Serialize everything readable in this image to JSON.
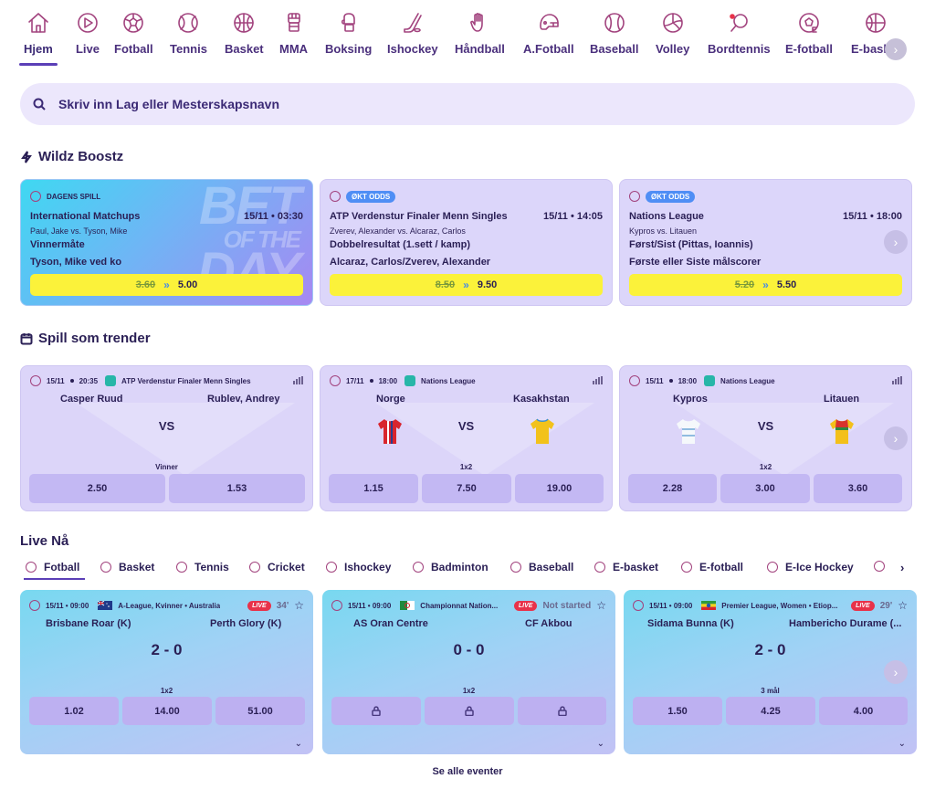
{
  "nav": {
    "items": [
      {
        "label": "Hjem",
        "icon": "home-icon"
      },
      {
        "label": "Live",
        "icon": "play-icon"
      },
      {
        "label": "Fotball",
        "icon": "soccer-ball-icon"
      },
      {
        "label": "Tennis",
        "icon": "tennis-ball-icon"
      },
      {
        "label": "Basket",
        "icon": "basketball-icon"
      },
      {
        "label": "MMA",
        "icon": "mma-glove-icon"
      },
      {
        "label": "Boksing",
        "icon": "boxing-glove-icon"
      },
      {
        "label": "Ishockey",
        "icon": "hockey-stick-icon"
      },
      {
        "label": "Håndball",
        "icon": "handball-icon"
      },
      {
        "label": "A.Fotball",
        "icon": "football-helmet-icon"
      },
      {
        "label": "Baseball",
        "icon": "baseball-icon"
      },
      {
        "label": "Volley",
        "icon": "volleyball-icon"
      },
      {
        "label": "Bordtennis",
        "icon": "table-tennis-icon"
      },
      {
        "label": "E-fotball",
        "icon": "esoccer-icon"
      },
      {
        "label": "E-basket",
        "icon": "ebasket-icon"
      }
    ],
    "next_icon": "›"
  },
  "search": {
    "placeholder": "Skriv inn Lag eller Mesterskapsnavn"
  },
  "boosts": {
    "title": "Wildz Boostz",
    "cards": [
      {
        "tag": "DAGENS SPILL",
        "watermark1": "BET",
        "watermark2": "OF THE",
        "watermark3": "DAY",
        "league": "International Matchups",
        "time": "15/11 • 03:30",
        "teams": "Paul, Jake vs. Tyson, Mike",
        "market": "Vinnermåte",
        "selection": "Tyson, Mike ved ko",
        "old_odds": "3.60",
        "new_odds": "5.00"
      },
      {
        "tag": "ØKT ODDS",
        "league": "ATP Verdenstur Finaler Menn Singles",
        "time": "15/11 • 14:05",
        "teams": "Zverev, Alexander vs. Alcaraz, Carlos",
        "market": "Dobbelresultat (1.sett / kamp)",
        "selection": "Alcaraz, Carlos/Zverev, Alexander",
        "old_odds": "8.50",
        "new_odds": "9.50"
      },
      {
        "tag": "ØKT ODDS",
        "league": "Nations League",
        "time": "15/11 • 18:00",
        "teams": "Kypros vs. Litauen",
        "market": "Først/Sist (Pittas, Ioannis)",
        "selection": "Første eller Siste målscorer",
        "old_odds": "5.20",
        "new_odds": "5.50"
      }
    ]
  },
  "trending": {
    "title": "Spill som trender",
    "vs": "VS",
    "cards": [
      {
        "date": "15/11",
        "time": "20:35",
        "league": "ATP Verdenstur Finaler Menn Singles",
        "home": "Casper Ruud",
        "away": "Rublev, Andrey",
        "market": "Vinner",
        "odds": [
          "2.50",
          "1.53"
        ]
      },
      {
        "date": "17/11",
        "time": "18:00",
        "league": "Nations League",
        "home": "Norge",
        "away": "Kasakhstan",
        "market": "1x2",
        "odds": [
          "1.15",
          "7.50",
          "19.00"
        ]
      },
      {
        "date": "15/11",
        "time": "18:00",
        "league": "Nations League",
        "home": "Kypros",
        "away": "Litauen",
        "market": "1x2",
        "odds": [
          "2.28",
          "3.00",
          "3.60"
        ]
      }
    ]
  },
  "live": {
    "title": "Live Nå",
    "tabs": [
      "Fotball",
      "Basket",
      "Tennis",
      "Cricket",
      "Ishockey",
      "Badminton",
      "Baseball",
      "E-basket",
      "E-fotball",
      "E-Ice Hockey"
    ],
    "live_badge": "LIVE",
    "cards": [
      {
        "datetime": "15/11 • 09:00",
        "league": "A-League, Kvinner • Australia",
        "minute": "34'",
        "home": "Brisbane Roar (K)",
        "away": "Perth Glory (K)",
        "score": "2 - 0",
        "market": "1x2",
        "odds": [
          "1.02",
          "14.00",
          "51.00"
        ]
      },
      {
        "datetime": "15/11 • 09:00",
        "league": "Championnat Nation...",
        "minute": "Not started",
        "home": "AS Oran Centre",
        "away": "CF Akbou",
        "score": "0 - 0",
        "market": "1x2",
        "odds": [
          "",
          "",
          ""
        ]
      },
      {
        "datetime": "15/11 • 09:00",
        "league": "Premier League, Women • Etiop...",
        "minute": "29'",
        "home": "Sidama Bunna (K)",
        "away": "Hambericho Durame (...",
        "score": "2 - 0",
        "market": "3 mål",
        "odds": [
          "1.50",
          "4.25",
          "4.00"
        ]
      }
    ],
    "see_all": "Se alle eventer"
  },
  "colors": {
    "accent": "#5b3fb7",
    "icon": "#a2437e",
    "odds_yellow": "#fbf23a",
    "live_red": "#e8324a"
  }
}
